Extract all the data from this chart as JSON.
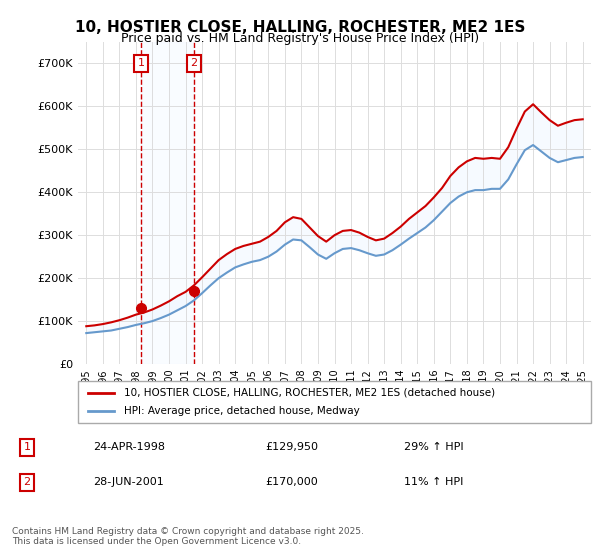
{
  "title": "10, HOSTIER CLOSE, HALLING, ROCHESTER, ME2 1ES",
  "subtitle": "Price paid vs. HM Land Registry's House Price Index (HPI)",
  "legend_line1": "10, HOSTIER CLOSE, HALLING, ROCHESTER, ME2 1ES (detached house)",
  "legend_line2": "HPI: Average price, detached house, Medway",
  "annotation1_label": "1",
  "annotation1_date": "24-APR-1998",
  "annotation1_price": "£129,950",
  "annotation1_hpi": "29% ↑ HPI",
  "annotation2_label": "2",
  "annotation2_date": "28-JUN-2001",
  "annotation2_price": "£170,000",
  "annotation2_hpi": "11% ↑ HPI",
  "footer": "Contains HM Land Registry data © Crown copyright and database right 2025.\nThis data is licensed under the Open Government Licence v3.0.",
  "red_color": "#cc0000",
  "blue_color": "#6699cc",
  "shaded_color": "#ddeeff",
  "annotation_box_color": "#cc0000",
  "background_color": "#ffffff",
  "grid_color": "#dddddd",
  "ylim": [
    0,
    750000
  ],
  "yticks": [
    0,
    100000,
    200000,
    300000,
    400000,
    500000,
    600000,
    700000
  ],
  "ytick_labels": [
    "£0",
    "£100K",
    "£200K",
    "£300K",
    "£400K",
    "£500K",
    "£600K",
    "£700K"
  ],
  "sale1_year": 1998.31,
  "sale2_year": 2001.49,
  "sale1_price": 129950,
  "sale2_price": 170000,
  "hpi_years": [
    1995,
    1995.5,
    1996,
    1996.5,
    1997,
    1997.5,
    1998,
    1998.5,
    1999,
    1999.5,
    2000,
    2000.5,
    2001,
    2001.5,
    2002,
    2002.5,
    2003,
    2003.5,
    2004,
    2004.5,
    2005,
    2005.5,
    2006,
    2006.5,
    2007,
    2007.5,
    2008,
    2008.5,
    2009,
    2009.5,
    2010,
    2010.5,
    2011,
    2011.5,
    2012,
    2012.5,
    2013,
    2013.5,
    2014,
    2014.5,
    2015,
    2015.5,
    2016,
    2016.5,
    2017,
    2017.5,
    2018,
    2018.5,
    2019,
    2019.5,
    2020,
    2020.5,
    2021,
    2021.5,
    2022,
    2022.5,
    2023,
    2023.5,
    2024,
    2024.5,
    2025
  ],
  "hpi_values": [
    72000,
    74000,
    76000,
    78000,
    82000,
    86000,
    91000,
    95000,
    100000,
    107000,
    115000,
    125000,
    135000,
    148000,
    165000,
    183000,
    200000,
    213000,
    225000,
    232000,
    238000,
    242000,
    250000,
    262000,
    278000,
    290000,
    288000,
    272000,
    255000,
    245000,
    258000,
    268000,
    270000,
    265000,
    258000,
    252000,
    255000,
    265000,
    278000,
    292000,
    305000,
    318000,
    335000,
    355000,
    375000,
    390000,
    400000,
    405000,
    405000,
    408000,
    408000,
    430000,
    465000,
    498000,
    510000,
    495000,
    480000,
    470000,
    475000,
    480000,
    482000
  ],
  "red_years": [
    1995,
    1995.5,
    1996,
    1996.5,
    1997,
    1997.5,
    1998,
    1998.5,
    1999,
    1999.5,
    2000,
    2000.5,
    2001,
    2001.5,
    2002,
    2002.5,
    2003,
    2003.5,
    2004,
    2004.5,
    2005,
    2005.5,
    2006,
    2006.5,
    2007,
    2007.5,
    2008,
    2008.5,
    2009,
    2009.5,
    2010,
    2010.5,
    2011,
    2011.5,
    2012,
    2012.5,
    2013,
    2013.5,
    2014,
    2014.5,
    2015,
    2015.5,
    2016,
    2016.5,
    2017,
    2017.5,
    2018,
    2018.5,
    2019,
    2019.5,
    2020,
    2020.5,
    2021,
    2021.5,
    2022,
    2022.5,
    2023,
    2023.5,
    2024,
    2024.5,
    2025
  ],
  "red_values": [
    88000,
    90000,
    93000,
    97000,
    102000,
    108000,
    115000,
    120000,
    127000,
    136000,
    146000,
    158000,
    168000,
    183000,
    202000,
    222000,
    242000,
    256000,
    268000,
    275000,
    280000,
    285000,
    296000,
    310000,
    330000,
    342000,
    338000,
    318000,
    298000,
    285000,
    300000,
    310000,
    312000,
    306000,
    296000,
    288000,
    292000,
    305000,
    320000,
    338000,
    353000,
    368000,
    388000,
    410000,
    438000,
    458000,
    472000,
    480000,
    478000,
    480000,
    478000,
    505000,
    548000,
    588000,
    605000,
    586000,
    568000,
    555000,
    562000,
    568000,
    570000
  ]
}
